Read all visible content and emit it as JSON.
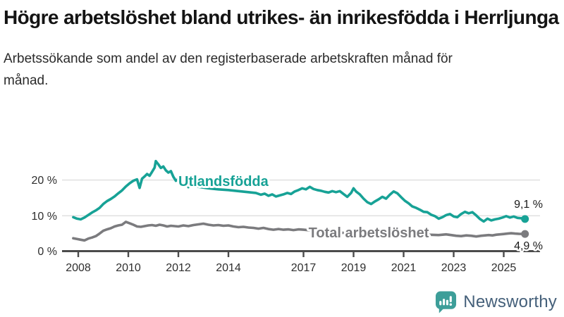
{
  "header": {
    "title": "Högre arbetslöshet bland utrikes- än inrikesfödda i Herrljunga",
    "subtitle": "Arbetssökande som andel av den registerbaserade arbetskraften månad för månad."
  },
  "chart_data": {
    "type": "line",
    "unit": "%",
    "grid": "horizontal-only",
    "x_axis": {
      "ticks": [
        [
          2008,
          "2008"
        ],
        [
          2010,
          "2010"
        ],
        [
          2012,
          "2012"
        ],
        [
          2014,
          "2014"
        ],
        [
          2017,
          "2017"
        ],
        [
          2019,
          "2019"
        ],
        [
          2021,
          "2021"
        ],
        [
          2023,
          "2023"
        ],
        [
          2025,
          "2025"
        ]
      ],
      "range_years": [
        2007.8,
        2026.4
      ]
    },
    "y_axis": {
      "ticks": [
        [
          0,
          "0 %"
        ],
        [
          10,
          "10 %"
        ],
        [
          20,
          "20 %"
        ]
      ],
      "range": [
        0,
        27
      ]
    },
    "series": [
      {
        "id": "utlandsfodda",
        "name": "Utlandsfödda",
        "color": "#17a296",
        "end_label": "9,1 %",
        "end_value": 9.1,
        "end_label_offset": -16,
        "label_anchor": [
          2012.0,
          18.3
        ],
        "points": [
          [
            2007.8,
            9.6
          ],
          [
            2007.95,
            9.2
          ],
          [
            2008.1,
            9.0
          ],
          [
            2008.25,
            9.5
          ],
          [
            2008.4,
            10.2
          ],
          [
            2008.55,
            10.9
          ],
          [
            2008.7,
            11.5
          ],
          [
            2008.85,
            12.2
          ],
          [
            2009.0,
            13.3
          ],
          [
            2009.15,
            14.1
          ],
          [
            2009.3,
            14.7
          ],
          [
            2009.45,
            15.4
          ],
          [
            2009.6,
            16.3
          ],
          [
            2009.75,
            17.1
          ],
          [
            2009.9,
            18.2
          ],
          [
            2010.05,
            19.1
          ],
          [
            2010.2,
            19.8
          ],
          [
            2010.35,
            20.2
          ],
          [
            2010.45,
            17.8
          ],
          [
            2010.55,
            20.4
          ],
          [
            2010.65,
            21.0
          ],
          [
            2010.75,
            21.7
          ],
          [
            2010.85,
            21.2
          ],
          [
            2010.95,
            22.3
          ],
          [
            2011.05,
            23.5
          ],
          [
            2011.1,
            25.3
          ],
          [
            2011.2,
            24.4
          ],
          [
            2011.3,
            23.4
          ],
          [
            2011.4,
            23.8
          ],
          [
            2011.5,
            22.7
          ],
          [
            2011.6,
            22.1
          ],
          [
            2011.7,
            22.5
          ],
          [
            2011.8,
            20.9
          ],
          [
            2011.9,
            19.8
          ],
          [
            2012.0,
            20.3
          ],
          [
            2012.1,
            18.9
          ],
          [
            2012.2,
            18.4
          ],
          [
            2012.3,
            19.8
          ],
          [
            2012.4,
            18.0
          ],
          [
            2012.5,
            18.5
          ],
          [
            2012.8,
            18.1
          ],
          [
            2013.2,
            17.7
          ],
          [
            2013.6,
            17.4
          ],
          [
            2014.0,
            17.2
          ],
          [
            2014.4,
            16.9
          ],
          [
            2014.8,
            16.6
          ],
          [
            2015.1,
            16.4
          ],
          [
            2015.3,
            15.9
          ],
          [
            2015.45,
            16.2
          ],
          [
            2015.6,
            15.6
          ],
          [
            2015.75,
            16.0
          ],
          [
            2015.9,
            15.4
          ],
          [
            2016.05,
            15.7
          ],
          [
            2016.2,
            16.0
          ],
          [
            2016.35,
            16.4
          ],
          [
            2016.5,
            16.1
          ],
          [
            2016.65,
            16.8
          ],
          [
            2016.8,
            17.2
          ],
          [
            2016.95,
            17.7
          ],
          [
            2017.1,
            17.4
          ],
          [
            2017.25,
            18.1
          ],
          [
            2017.4,
            17.5
          ],
          [
            2017.55,
            17.2
          ],
          [
            2017.7,
            17.0
          ],
          [
            2017.85,
            16.7
          ],
          [
            2018.0,
            16.5
          ],
          [
            2018.15,
            16.9
          ],
          [
            2018.3,
            16.6
          ],
          [
            2018.45,
            16.9
          ],
          [
            2018.6,
            16.1
          ],
          [
            2018.75,
            15.3
          ],
          [
            2018.9,
            16.4
          ],
          [
            2019.0,
            17.7
          ],
          [
            2019.1,
            16.8
          ],
          [
            2019.25,
            16.0
          ],
          [
            2019.4,
            14.8
          ],
          [
            2019.55,
            13.8
          ],
          [
            2019.7,
            13.3
          ],
          [
            2019.85,
            14.0
          ],
          [
            2020.0,
            14.6
          ],
          [
            2020.15,
            15.3
          ],
          [
            2020.3,
            14.8
          ],
          [
            2020.45,
            15.9
          ],
          [
            2020.6,
            16.8
          ],
          [
            2020.75,
            16.3
          ],
          [
            2020.9,
            15.2
          ],
          [
            2021.05,
            14.2
          ],
          [
            2021.2,
            13.5
          ],
          [
            2021.35,
            12.6
          ],
          [
            2021.5,
            12.2
          ],
          [
            2021.65,
            11.7
          ],
          [
            2021.8,
            11.1
          ],
          [
            2021.95,
            11.0
          ],
          [
            2022.1,
            10.3
          ],
          [
            2022.25,
            9.9
          ],
          [
            2022.4,
            9.2
          ],
          [
            2022.55,
            9.6
          ],
          [
            2022.7,
            10.2
          ],
          [
            2022.85,
            10.5
          ],
          [
            2023.0,
            9.8
          ],
          [
            2023.15,
            9.6
          ],
          [
            2023.3,
            10.5
          ],
          [
            2023.45,
            11.1
          ],
          [
            2023.6,
            10.7
          ],
          [
            2023.75,
            11.0
          ],
          [
            2023.9,
            10.1
          ],
          [
            2024.05,
            9.1
          ],
          [
            2024.2,
            8.4
          ],
          [
            2024.35,
            9.2
          ],
          [
            2024.5,
            8.7
          ],
          [
            2024.65,
            9.0
          ],
          [
            2024.8,
            9.2
          ],
          [
            2024.95,
            9.5
          ],
          [
            2025.1,
            9.9
          ],
          [
            2025.25,
            9.5
          ],
          [
            2025.4,
            9.8
          ],
          [
            2025.55,
            9.4
          ],
          [
            2025.7,
            9.3
          ],
          [
            2025.85,
            9.1
          ]
        ]
      },
      {
        "id": "total",
        "name": "Total arbetslöshet",
        "color": "#7b7b7e",
        "end_label": "4,9 %",
        "end_value": 4.9,
        "end_label_offset": 22,
        "label_anchor": [
          2017.2,
          3.9
        ],
        "points": [
          [
            2007.8,
            3.7
          ],
          [
            2007.95,
            3.5
          ],
          [
            2008.1,
            3.3
          ],
          [
            2008.25,
            3.1
          ],
          [
            2008.4,
            3.6
          ],
          [
            2008.55,
            3.9
          ],
          [
            2008.7,
            4.3
          ],
          [
            2008.85,
            5.0
          ],
          [
            2009.0,
            5.8
          ],
          [
            2009.15,
            6.2
          ],
          [
            2009.3,
            6.5
          ],
          [
            2009.45,
            7.0
          ],
          [
            2009.6,
            7.3
          ],
          [
            2009.75,
            7.5
          ],
          [
            2009.9,
            8.3
          ],
          [
            2010.05,
            7.9
          ],
          [
            2010.2,
            7.5
          ],
          [
            2010.35,
            7.0
          ],
          [
            2010.5,
            6.9
          ],
          [
            2010.65,
            7.1
          ],
          [
            2010.8,
            7.3
          ],
          [
            2010.95,
            7.4
          ],
          [
            2011.1,
            7.2
          ],
          [
            2011.25,
            7.5
          ],
          [
            2011.4,
            7.3
          ],
          [
            2011.55,
            7.0
          ],
          [
            2011.7,
            7.2
          ],
          [
            2011.85,
            7.1
          ],
          [
            2012.0,
            7.0
          ],
          [
            2012.2,
            7.3
          ],
          [
            2012.4,
            7.1
          ],
          [
            2012.6,
            7.4
          ],
          [
            2012.8,
            7.6
          ],
          [
            2013.0,
            7.8
          ],
          [
            2013.2,
            7.5
          ],
          [
            2013.4,
            7.3
          ],
          [
            2013.6,
            7.4
          ],
          [
            2013.8,
            7.2
          ],
          [
            2014.0,
            7.3
          ],
          [
            2014.2,
            7.0
          ],
          [
            2014.4,
            6.8
          ],
          [
            2014.6,
            6.9
          ],
          [
            2014.8,
            6.7
          ],
          [
            2015.0,
            6.6
          ],
          [
            2015.2,
            6.4
          ],
          [
            2015.4,
            6.6
          ],
          [
            2015.6,
            6.3
          ],
          [
            2015.8,
            6.1
          ],
          [
            2016.0,
            6.3
          ],
          [
            2016.2,
            6.1
          ],
          [
            2016.4,
            6.2
          ],
          [
            2016.6,
            6.0
          ],
          [
            2016.8,
            6.2
          ],
          [
            2017.0,
            6.1
          ],
          [
            2017.3,
            5.9
          ],
          [
            2017.6,
            5.7
          ],
          [
            2018.0,
            5.5
          ],
          [
            2018.4,
            5.3
          ],
          [
            2018.8,
            5.1
          ],
          [
            2019.2,
            5.0
          ],
          [
            2019.6,
            4.9
          ],
          [
            2020.0,
            5.2
          ],
          [
            2020.4,
            5.6
          ],
          [
            2020.8,
            5.5
          ],
          [
            2021.2,
            5.2
          ],
          [
            2021.6,
            4.9
          ],
          [
            2022.0,
            4.7
          ],
          [
            2022.4,
            4.6
          ],
          [
            2022.7,
            4.8
          ],
          [
            2022.9,
            4.6
          ],
          [
            2023.1,
            4.4
          ],
          [
            2023.3,
            4.3
          ],
          [
            2023.5,
            4.5
          ],
          [
            2023.7,
            4.4
          ],
          [
            2023.9,
            4.2
          ],
          [
            2024.1,
            4.4
          ],
          [
            2024.25,
            4.5
          ],
          [
            2024.4,
            4.6
          ],
          [
            2024.55,
            4.5
          ],
          [
            2024.7,
            4.7
          ],
          [
            2024.85,
            4.8
          ],
          [
            2025.0,
            4.9
          ],
          [
            2025.15,
            5.0
          ],
          [
            2025.3,
            5.1
          ],
          [
            2025.45,
            5.0
          ],
          [
            2025.6,
            4.95
          ],
          [
            2025.85,
            4.9
          ]
        ]
      }
    ]
  },
  "branding": {
    "wordmark": "Newsworthy"
  },
  "colors": {
    "accent_teal": "#17a296",
    "line_gray": "#7b7b7e",
    "grid": "#dedede",
    "axis": "#4b4b4b",
    "logo_teal": "#3d9e99",
    "wordmark_blue": "#45607a"
  }
}
